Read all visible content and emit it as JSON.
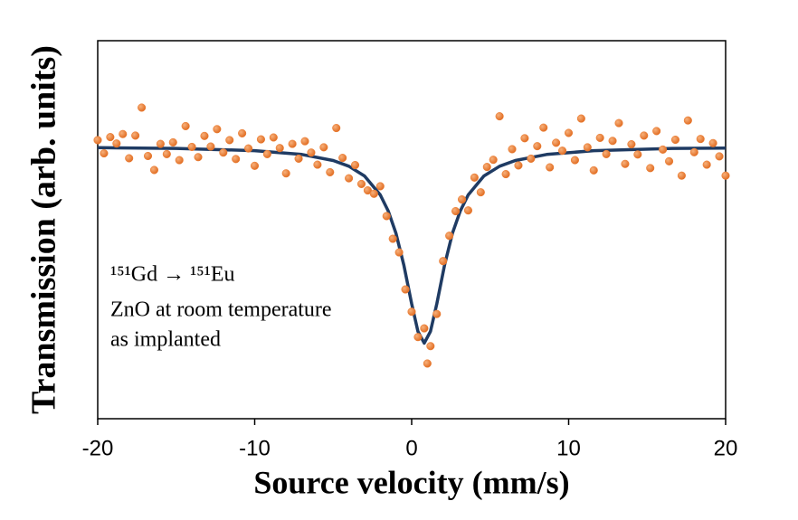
{
  "chart_data": {
    "type": "scatter",
    "xlabel": "Source velocity (mm/s)",
    "ylabel": "Transmission (arb. units)",
    "annotations": [
      "¹⁵¹Gd → ¹⁵¹Eu",
      "ZnO at room temperature",
      "as implanted"
    ],
    "xlim": [
      -20,
      20
    ],
    "xticks": [
      -20,
      -10,
      0,
      10,
      20
    ],
    "ylim": [
      0,
      100
    ],
    "points": {
      "color": "#ed7d31",
      "x": [
        -20.0,
        -19.6,
        -19.2,
        -18.8,
        -18.4,
        -18.0,
        -17.6,
        -17.2,
        -16.8,
        -16.4,
        -16.0,
        -15.6,
        -15.2,
        -14.8,
        -14.4,
        -14.0,
        -13.6,
        -13.2,
        -12.8,
        -12.4,
        -12.0,
        -11.6,
        -11.2,
        -10.8,
        -10.4,
        -10.0,
        -9.6,
        -9.2,
        -8.8,
        -8.4,
        -8.0,
        -7.6,
        -7.2,
        -6.8,
        -6.4,
        -6.0,
        -5.6,
        -5.2,
        -4.8,
        -4.4,
        -4.0,
        -3.6,
        -3.2,
        -2.8,
        -2.4,
        -2.0,
        -1.6,
        -1.2,
        -0.8,
        -0.4,
        0.0,
        0.4,
        0.8,
        1.0,
        1.2,
        1.6,
        2.0,
        2.4,
        2.8,
        3.2,
        3.6,
        4.0,
        4.4,
        4.8,
        5.2,
        5.6,
        6.0,
        6.4,
        6.8,
        7.2,
        7.6,
        8.0,
        8.4,
        8.8,
        9.2,
        9.6,
        10.0,
        10.4,
        10.8,
        11.2,
        11.6,
        12.0,
        12.4,
        12.8,
        13.2,
        13.6,
        14.0,
        14.4,
        14.8,
        15.2,
        15.6,
        16.0,
        16.4,
        16.8,
        17.2,
        17.6,
        18.0,
        18.4,
        18.8,
        19.2,
        19.6,
        20.0
      ],
      "values": [
        73.7,
        70.2,
        74.5,
        72.8,
        75.3,
        68.9,
        74.9,
        82.3,
        69.5,
        65.8,
        72.7,
        70.0,
        73.1,
        68.4,
        77.4,
        71.9,
        69.2,
        74.8,
        72.0,
        76.6,
        70.4,
        73.7,
        68.7,
        75.5,
        71.5,
        66.9,
        73.9,
        70.0,
        74.4,
        71.6,
        64.9,
        72.7,
        68.8,
        73.4,
        70.4,
        67.2,
        71.8,
        65.2,
        76.9,
        69.0,
        63.6,
        67.1,
        62.1,
        60.4,
        59.5,
        61.5,
        53.6,
        47.6,
        44.0,
        34.2,
        28.3,
        21.6,
        23.9,
        14.6,
        19.2,
        27.7,
        41.7,
        48.4,
        54.9,
        58.0,
        55.1,
        63.8,
        59.9,
        66.6,
        68.5,
        80.0,
        64.7,
        71.3,
        67.0,
        74.2,
        68.8,
        72.1,
        77.0,
        66.5,
        73.0,
        70.9,
        75.6,
        68.4,
        79.4,
        71.8,
        65.7,
        74.3,
        70.0,
        73.5,
        78.2,
        67.4,
        72.6,
        69.9,
        74.9,
        66.3,
        76.1,
        71.2,
        68.1,
        73.8,
        64.3,
        78.9,
        70.5,
        74.0,
        67.2,
        72.9,
        69.4,
        64.3
      ]
    },
    "fit": {
      "color": "#1f3b63",
      "x": [
        -20,
        -15,
        -10,
        -7,
        -5,
        -4,
        -3,
        -2,
        -1.5,
        -1,
        -0.5,
        0,
        0.4,
        0.8,
        1.2,
        1.6,
        2.1,
        2.6,
        3.1,
        3.6,
        4.6,
        5.6,
        6.6,
        8.6,
        11.6,
        16.6,
        20
      ],
      "values": [
        71.7,
        71.5,
        70.9,
        69.9,
        68.3,
        66.8,
        64.2,
        59.2,
        55.0,
        49.1,
        40.7,
        30.4,
        23.1,
        20.0,
        23.1,
        30.4,
        40.7,
        49.1,
        55.0,
        59.2,
        64.2,
        66.8,
        68.3,
        69.9,
        70.9,
        71.5,
        71.6
      ]
    }
  }
}
